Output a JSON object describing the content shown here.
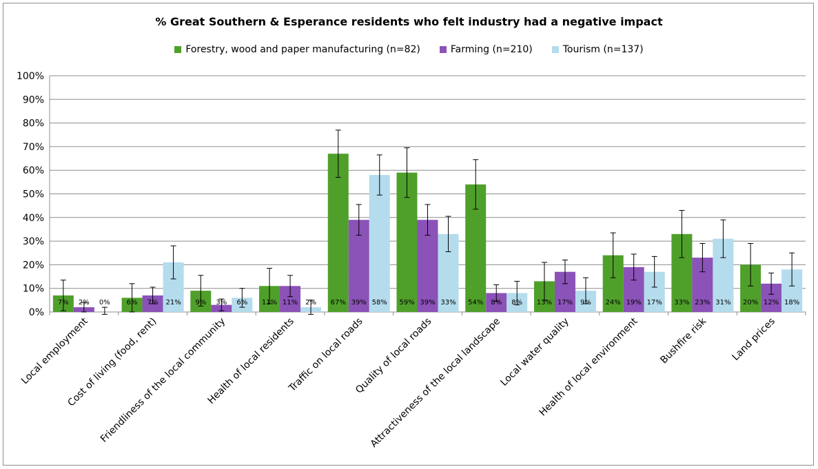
{
  "chart_data": {
    "type": "bar",
    "title": "% Great Southern & Esperance residents who felt industry had a negative impact",
    "xlabel": "",
    "ylabel": "",
    "ylim": [
      0,
      100
    ],
    "yticks": [
      "0%",
      "10%",
      "20%",
      "30%",
      "40%",
      "50%",
      "60%",
      "70%",
      "80%",
      "90%",
      "100%"
    ],
    "grid": true,
    "legend_position": "top",
    "categories": [
      "Local employment",
      "Cost of living (food, rent)",
      "Friendliness of the local community",
      "Health of local residents",
      "Traffic on local roads",
      "Quality of local roads",
      "Attractiveness of the local landscape",
      "Local water quality",
      "Health of local environment",
      "Bushfire risk",
      "Land prices"
    ],
    "series": [
      {
        "name": "Forestry, wood and paper manufacturing (n=82)",
        "color": "#4fa02a",
        "values": [
          7,
          6,
          9,
          11,
          67,
          59,
          54,
          13,
          24,
          33,
          20
        ],
        "value_labels": [
          "7%",
          "6%",
          "9%",
          "11%",
          "67%",
          "59%",
          "54%",
          "13%",
          "24%",
          "33%",
          "20%"
        ],
        "errors": [
          6.5,
          6,
          6.5,
          7.5,
          10,
          10.5,
          10.5,
          8,
          9.5,
          10,
          9
        ]
      },
      {
        "name": "Farming (n=210)",
        "color": "#8b52b8",
        "values": [
          2,
          7,
          3,
          11,
          39,
          39,
          8,
          17,
          19,
          23,
          12
        ],
        "value_labels": [
          "2%",
          "7%",
          "3%",
          "11%",
          "39%",
          "39%",
          "8%",
          "17%",
          "19%",
          "23%",
          "12%"
        ],
        "errors": [
          2,
          3.5,
          2.5,
          4.5,
          6.5,
          6.5,
          3.5,
          5,
          5.5,
          6,
          4.5
        ]
      },
      {
        "name": "Tourism (n=137)",
        "color": "#b4dced",
        "values": [
          0,
          21,
          6,
          2,
          58,
          33,
          8,
          9,
          17,
          31,
          18
        ],
        "value_labels": [
          "0%",
          "21%",
          "6%",
          "2%",
          "58%",
          "33%",
          "8%",
          "9%",
          "17%",
          "31%",
          "18%"
        ],
        "errors": [
          2,
          7,
          4,
          3,
          8.5,
          7.5,
          5,
          5.5,
          6.5,
          8,
          7
        ]
      }
    ]
  }
}
